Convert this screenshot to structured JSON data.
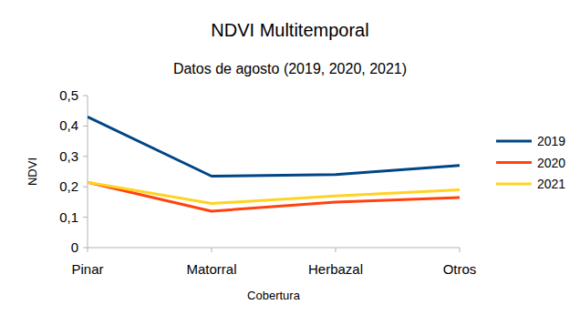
{
  "chart_data": {
    "type": "line",
    "title": "NDVI Multitemporal",
    "subtitle": "Datos de agosto (2019, 2020, 2021)",
    "x_label": "Cobertura",
    "y_label": "NDVI",
    "categories": [
      "Pinar",
      "Matorral",
      "Herbazal",
      "Otros"
    ],
    "series": [
      {
        "name": "2019",
        "color": "#004586",
        "values": [
          0.43,
          0.235,
          0.24,
          0.27
        ]
      },
      {
        "name": "2020",
        "color": "#ff420e",
        "values": [
          0.215,
          0.12,
          0.15,
          0.165
        ]
      },
      {
        "name": "2021",
        "color": "#ffd320",
        "values": [
          0.215,
          0.145,
          0.17,
          0.19
        ]
      }
    ],
    "ylim": [
      0,
      0.5
    ],
    "yticks": [
      0,
      {
        "value": 0.1,
        "label": "0,1"
      },
      {
        "value": 0.2,
        "label": "0,2"
      },
      {
        "value": 0.3,
        "label": "0,3"
      },
      {
        "value": 0.4,
        "label": "0,4"
      },
      {
        "value": 0.5,
        "label": "0,5"
      }
    ],
    "grid": false,
    "legend": "right"
  }
}
